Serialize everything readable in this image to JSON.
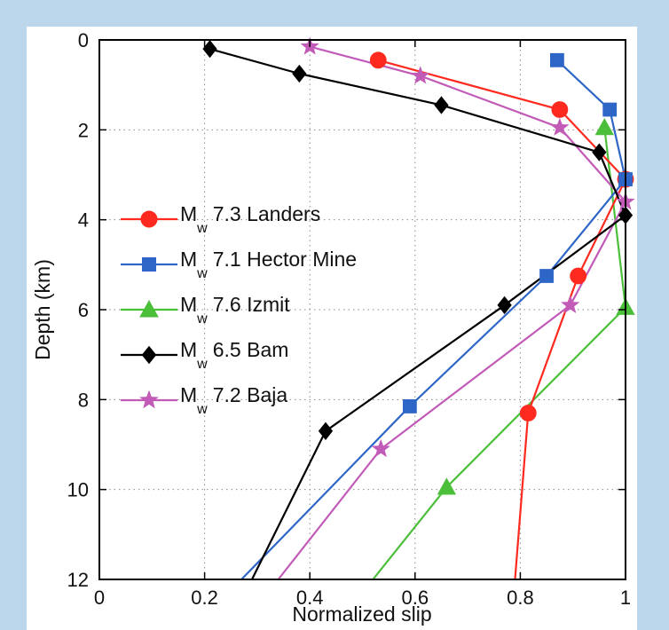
{
  "chart_data": {
    "type": "line",
    "xlabel": "Normalized slip",
    "ylabel": "Depth (km)",
    "xlim": [
      0,
      1
    ],
    "ylim": [
      0,
      12
    ],
    "y_inverted": true,
    "grid": "dotted",
    "legend_position": "left",
    "x_ticks": [
      "0",
      "0.2",
      "0.4",
      "0.6",
      "0.8",
      "1"
    ],
    "y_ticks": [
      "0",
      "2",
      "4",
      "6",
      "8",
      "10",
      "12"
    ],
    "series": [
      {
        "name_prefix": "M",
        "name_sub": "w",
        "name_suffix": "7.3 Landers",
        "color": "#ff2a1f",
        "marker": "circle",
        "x": [
          0.53,
          0.875,
          1.0,
          0.91,
          0.815,
          0.79
        ],
        "y": [
          0.45,
          1.55,
          3.1,
          5.25,
          8.3,
          12.0
        ],
        "marked": [
          true,
          true,
          true,
          true,
          true,
          false
        ]
      },
      {
        "name_prefix": "M",
        "name_sub": "w",
        "name_suffix": "7.1 Hector Mine",
        "color": "#2e66c7",
        "marker": "square",
        "x": [
          0.87,
          0.97,
          1.0,
          0.85,
          0.59,
          0.27
        ],
        "y": [
          0.45,
          1.55,
          3.1,
          5.25,
          8.15,
          12.0
        ],
        "marked": [
          true,
          true,
          true,
          true,
          true,
          false
        ]
      },
      {
        "name_prefix": "M",
        "name_sub": "w",
        "name_suffix": "7.6 Izmit",
        "color": "#4cbf3a",
        "marker": "triangle",
        "x": [
          0.96,
          1.0,
          0.66,
          0.52
        ],
        "y": [
          1.95,
          5.95,
          9.95,
          12.0
        ],
        "marked": [
          true,
          true,
          true,
          false
        ]
      },
      {
        "name_prefix": "M",
        "name_sub": "w",
        "name_suffix": "6.5 Bam",
        "color": "#000000",
        "marker": "diamond",
        "x": [
          0.21,
          0.38,
          0.65,
          0.95,
          1.0,
          0.77,
          0.43,
          0.29
        ],
        "y": [
          0.2,
          0.75,
          1.45,
          2.5,
          3.9,
          5.9,
          8.7,
          12.0
        ],
        "marked": [
          true,
          true,
          true,
          true,
          true,
          true,
          true,
          false
        ]
      },
      {
        "name_prefix": "M",
        "name_sub": "w",
        "name_suffix": "7.2 Baja",
        "color": "#c25ab8",
        "marker": "star",
        "x": [
          0.4,
          0.61,
          0.875,
          1.0,
          0.895,
          0.535,
          0.34
        ],
        "y": [
          0.15,
          0.8,
          1.95,
          3.6,
          5.9,
          9.1,
          12.0
        ],
        "marked": [
          true,
          true,
          true,
          true,
          true,
          true,
          false
        ]
      }
    ]
  }
}
